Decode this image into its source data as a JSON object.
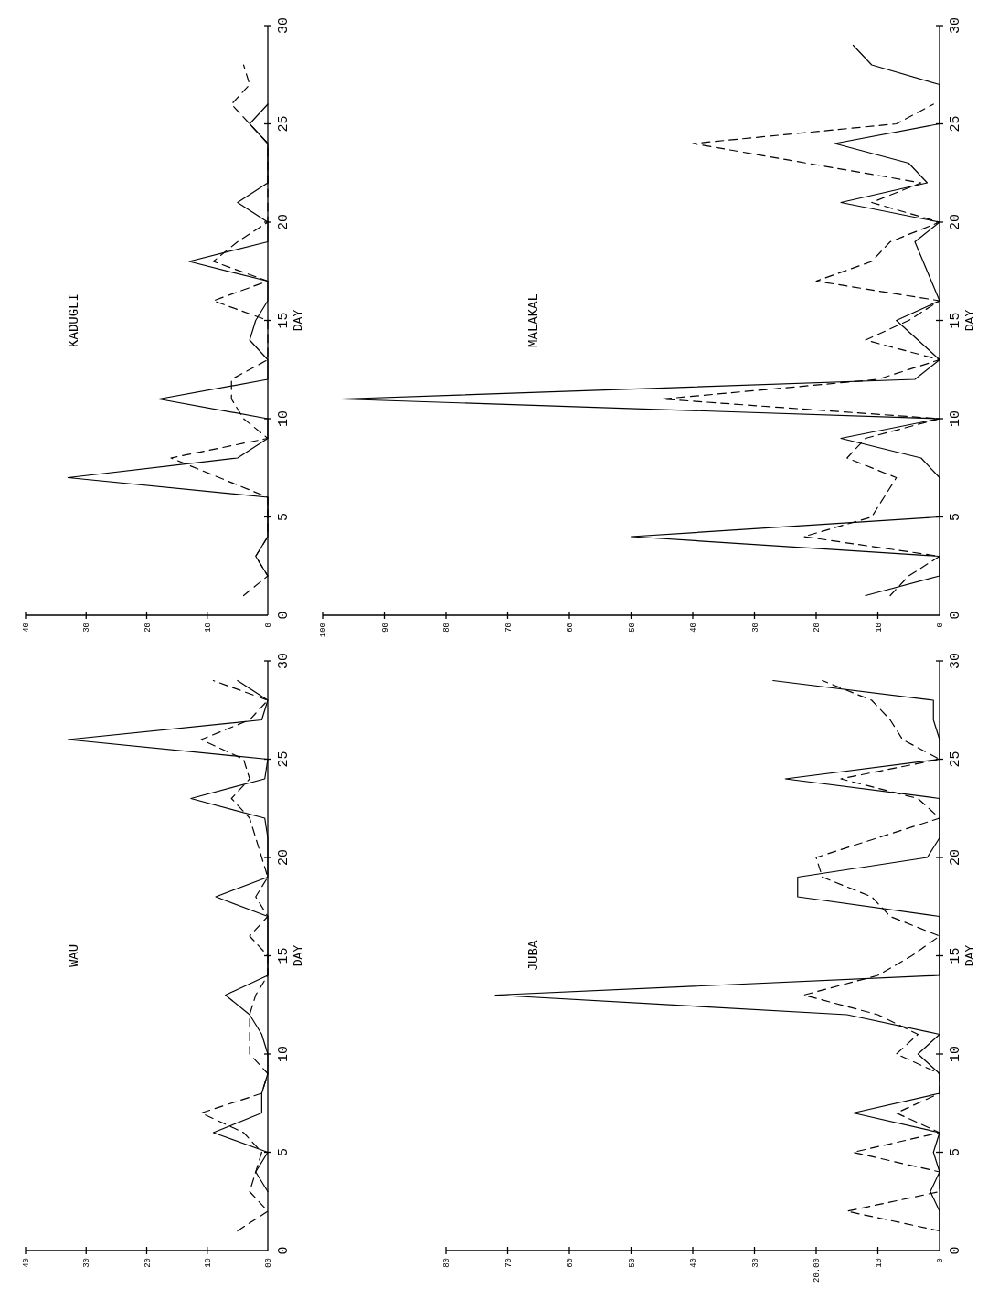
{
  "chart_data": [
    {
      "type": "line",
      "title": "WAU",
      "ylabel": "DAY",
      "xlim": [
        40,
        0
      ],
      "xticks": [
        40,
        30,
        20,
        10,
        {
          "value": 0,
          "label": "00"
        }
      ],
      "ylim": [
        0,
        30
      ],
      "yticks": [
        0,
        5,
        10,
        15,
        20,
        25,
        30
      ],
      "series": [
        {
          "color": "#000000",
          "line_style": "solid",
          "x": [
            0,
            2,
            0,
            9,
            1,
            1,
            0,
            0,
            1,
            3,
            7,
            0,
            0,
            0,
            0,
            8.6,
            0,
            0,
            0,
            0.5,
            12.7,
            0.5,
            0,
            33,
            1,
            0,
            5
          ],
          "values": [
            3,
            4,
            5,
            6,
            7,
            8,
            9,
            10,
            11,
            12,
            13,
            14,
            15,
            16,
            17,
            18,
            19,
            20,
            21,
            22,
            23,
            24,
            25,
            26,
            27,
            28,
            29
          ]
        },
        {
          "color": "#000000",
          "line_style": "dashed",
          "x": [
            5,
            0,
            3,
            2,
            1,
            4,
            11,
            1,
            0,
            3,
            3,
            3,
            2,
            0,
            0,
            3,
            0,
            2,
            0,
            1,
            2,
            3,
            6,
            3,
            4,
            11,
            3,
            0,
            9
          ],
          "values": [
            1,
            2,
            3,
            4,
            5,
            6,
            7,
            8,
            9,
            10,
            11,
            12,
            13,
            14,
            15,
            16,
            17,
            18,
            19,
            20,
            21,
            22,
            23,
            24,
            25,
            26,
            27,
            28,
            29
          ]
        }
      ]
    },
    {
      "type": "line",
      "title": "KADUGLI",
      "ylabel": "DAY",
      "xlim": [
        40,
        0
      ],
      "xticks": [
        40,
        30,
        20,
        10,
        0
      ],
      "ylim": [
        0,
        30
      ],
      "yticks": [
        0,
        5,
        10,
        15,
        20,
        25,
        30
      ],
      "series": [
        {
          "color": "#000000",
          "line_style": "solid",
          "x": [
            0,
            2,
            0,
            0,
            33,
            5,
            0,
            0,
            18,
            0,
            0,
            3,
            2,
            0,
            0,
            13,
            0,
            0,
            5,
            0,
            0,
            3,
            0
          ],
          "values": [
            2,
            3,
            4,
            6,
            7,
            8,
            9,
            10,
            11,
            12,
            13,
            14,
            15,
            16,
            17,
            18,
            19,
            20,
            21,
            22,
            24,
            25,
            26
          ]
        },
        {
          "color": "#000000",
          "line_style": "dashed",
          "x": [
            4,
            0,
            2,
            0,
            0,
            16,
            0,
            4,
            6,
            6,
            0,
            0,
            0,
            9,
            0,
            9,
            5,
            0,
            0,
            0,
            6,
            3,
            4
          ],
          "values": [
            1,
            2,
            3,
            4,
            6,
            8,
            9,
            10,
            11,
            12,
            13,
            14,
            15,
            16,
            17,
            18,
            19,
            20,
            22,
            24,
            26,
            27,
            28
          ]
        }
      ]
    },
    {
      "type": "line",
      "title": "JUBA",
      "ylabel": "DAY",
      "xlim": [
        80,
        0
      ],
      "xticks": [
        80,
        70,
        60,
        50,
        40,
        30,
        {
          "value": 20,
          "label": "20.00"
        },
        10,
        0
      ],
      "ylim": [
        0,
        30
      ],
      "yticks": [
        0,
        5,
        10,
        15,
        20,
        25,
        30
      ],
      "series": [
        {
          "color": "#000000",
          "line_style": "solid",
          "x": [
            0,
            0,
            1.5,
            0,
            1,
            0,
            14,
            0,
            0,
            3.5,
            0,
            15,
            72,
            0,
            0,
            23,
            23,
            2,
            0,
            0,
            25,
            0,
            0,
            1,
            1,
            27
          ],
          "values": [
            1,
            2,
            3,
            4,
            5,
            6,
            7,
            8,
            9,
            10,
            11,
            12,
            13,
            14,
            17,
            18,
            19,
            20,
            21,
            23,
            24,
            25,
            26,
            27,
            28,
            29
          ]
        },
        {
          "color": "#000000",
          "line_style": "dashed",
          "x": [
            0,
            15,
            0,
            0,
            14,
            0,
            7,
            0,
            0,
            7,
            3.5,
            10,
            22,
            10,
            4.5,
            0,
            8,
            11,
            19,
            20,
            0,
            3.5,
            16,
            0,
            6,
            8,
            11,
            19
          ],
          "values": [
            1,
            2,
            3,
            4,
            5,
            6,
            7,
            8,
            9,
            10,
            11,
            12,
            13,
            14,
            15,
            16,
            17,
            18,
            19,
            20,
            22,
            23,
            24,
            25,
            26,
            27,
            28,
            29
          ]
        }
      ]
    },
    {
      "type": "line",
      "title": "MALAKAL",
      "ylabel": "DAY",
      "xlim": [
        100,
        0
      ],
      "xticks": [
        100,
        90,
        80,
        70,
        60,
        50,
        40,
        30,
        20,
        10,
        0
      ],
      "ylim": [
        0,
        30
      ],
      "yticks": [
        0,
        5,
        10,
        15,
        20,
        25,
        30
      ],
      "series": [
        {
          "color": "#000000",
          "line_style": "solid",
          "x": [
            12,
            0,
            0,
            50,
            0,
            0,
            3,
            16,
            0,
            97,
            4,
            0,
            7,
            0,
            4,
            0,
            16,
            2,
            5,
            17,
            0,
            0,
            0,
            11,
            14
          ],
          "values": [
            1,
            2,
            3,
            4,
            5,
            7,
            8,
            9,
            10,
            11,
            12,
            13,
            15,
            16,
            19,
            20,
            21,
            22,
            23,
            24,
            25,
            26,
            27,
            28,
            29
          ]
        },
        {
          "color": "#000000",
          "line_style": "dashed",
          "x": [
            8,
            5,
            0,
            22,
            11,
            7,
            15,
            12,
            0,
            45,
            10,
            0,
            12,
            5,
            0,
            20,
            11,
            8,
            0,
            11,
            3,
            40,
            7,
            1
          ],
          "values": [
            1,
            2,
            3,
            4,
            5,
            7,
            8,
            9,
            10,
            11,
            12,
            13,
            14,
            15,
            16,
            17,
            18,
            19,
            20,
            21,
            22,
            24,
            25,
            26
          ]
        }
      ]
    }
  ]
}
